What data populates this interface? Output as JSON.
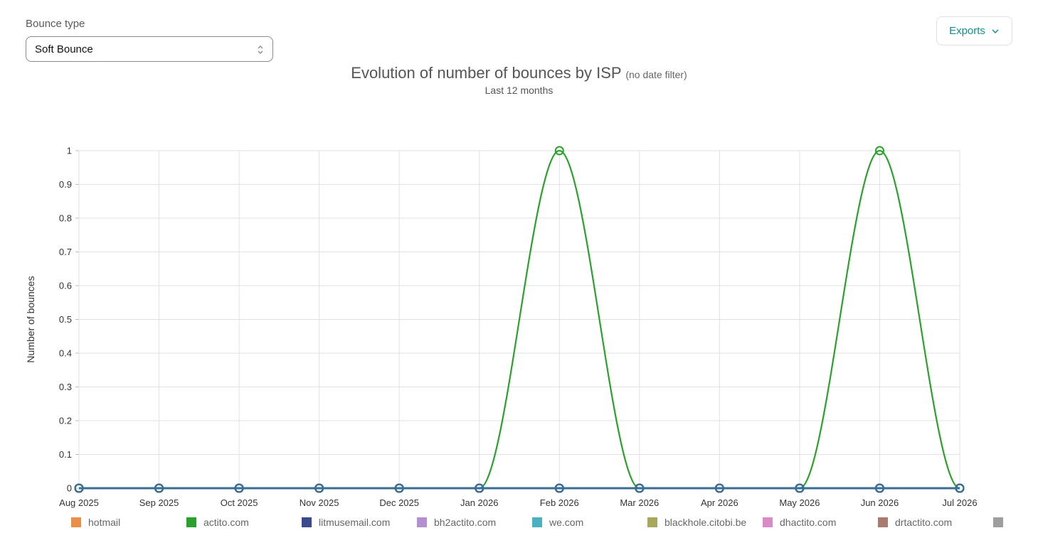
{
  "filter": {
    "label": "Bounce type",
    "selected": "Soft Bounce"
  },
  "exports": {
    "label": "Exports",
    "icon": "chevron-down-icon",
    "color": "#0e8f8a"
  },
  "chart_data": {
    "type": "line",
    "title": "Evolution of number of bounces by ISP",
    "title_note": "(no date filter)",
    "subtitle": "Last 12 months",
    "xlabel": "",
    "ylabel": "Number of bounces",
    "ylim": [
      0,
      1
    ],
    "y_ticks": [
      "0",
      "0.1",
      "0.2",
      "0.3",
      "0.4",
      "0.5",
      "0.6",
      "0.7",
      "0.8",
      "0.9",
      "1"
    ],
    "categories": [
      "Aug 2025",
      "Sep 2025",
      "Oct 2025",
      "Nov 2025",
      "Dec 2025",
      "Jan 2026",
      "Feb 2026",
      "Mar 2026",
      "Apr 2026",
      "May 2026",
      "Jun 2026",
      "Jul 2026"
    ],
    "grid": true,
    "legend_position": "bottom",
    "series": [
      {
        "name": "hotmail",
        "color": "#e8904a",
        "values": [
          0,
          0,
          0,
          0,
          0,
          0,
          0,
          0,
          0,
          0,
          0,
          0
        ]
      },
      {
        "name": "actito.com",
        "color": "#2ca02c",
        "values": [
          0,
          0,
          0,
          0,
          0,
          0,
          1,
          0,
          0,
          0,
          1,
          0
        ]
      },
      {
        "name": "litmusemail.com",
        "color": "#3b4a8c",
        "values": [
          0,
          0,
          0,
          0,
          0,
          0,
          0,
          0,
          0,
          0,
          0,
          0
        ]
      },
      {
        "name": "bh2actito.com",
        "color": "#b38fd0",
        "values": [
          0,
          0,
          0,
          0,
          0,
          0,
          0,
          0,
          0,
          0,
          0,
          0
        ]
      },
      {
        "name": "we.com",
        "color": "#4bb1c0",
        "values": [
          0,
          0,
          0,
          0,
          0,
          0,
          0,
          0,
          0,
          0,
          0,
          0
        ]
      },
      {
        "name": "blackhole.citobi.be",
        "color": "#a7a85a",
        "values": [
          0,
          0,
          0,
          0,
          0,
          0,
          0,
          0,
          0,
          0,
          0,
          0
        ]
      },
      {
        "name": "dhactito.com",
        "color": "#d88bc6",
        "values": [
          0,
          0,
          0,
          0,
          0,
          0,
          0,
          0,
          0,
          0,
          0,
          0
        ]
      },
      {
        "name": "drtactito.com",
        "color": "#a87a70",
        "values": [
          0,
          0,
          0,
          0,
          0,
          0,
          0,
          0,
          0,
          0,
          0,
          0
        ]
      },
      {
        "name": "",
        "color": "#9e9e9e",
        "values": [
          0,
          0,
          0,
          0,
          0,
          0,
          0,
          0,
          0,
          0,
          0,
          0
        ]
      }
    ],
    "baseline_series_color": "#3a6d95"
  }
}
